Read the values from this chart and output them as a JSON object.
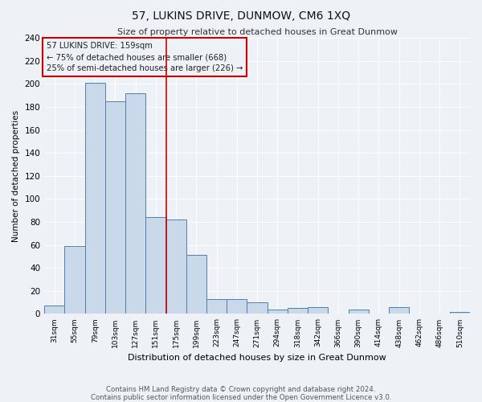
{
  "title": "57, LUKINS DRIVE, DUNMOW, CM6 1XQ",
  "subtitle": "Size of property relative to detached houses in Great Dunmow",
  "xlabel": "Distribution of detached houses by size in Great Dunmow",
  "ylabel": "Number of detached properties",
  "bar_labels": [
    "31sqm",
    "55sqm",
    "79sqm",
    "103sqm",
    "127sqm",
    "151sqm",
    "175sqm",
    "199sqm",
    "223sqm",
    "247sqm",
    "271sqm",
    "294sqm",
    "318sqm",
    "342sqm",
    "366sqm",
    "390sqm",
    "414sqm",
    "438sqm",
    "462sqm",
    "486sqm",
    "510sqm"
  ],
  "bar_values": [
    7,
    59,
    201,
    185,
    192,
    84,
    82,
    51,
    13,
    13,
    10,
    4,
    5,
    6,
    0,
    4,
    0,
    6,
    0,
    0,
    2
  ],
  "bar_color": "#c9d9ea",
  "bar_edge_color": "#4f7faa",
  "vline_x": 5.5,
  "vline_color": "#cc0000",
  "annotation_title": "57 LUKINS DRIVE: 159sqm",
  "annotation_line1": "← 75% of detached houses are smaller (668)",
  "annotation_line2": "25% of semi-detached houses are larger (226) →",
  "annotation_box_color": "#cc0000",
  "ylim": [
    0,
    240
  ],
  "yticks": [
    0,
    20,
    40,
    60,
    80,
    100,
    120,
    140,
    160,
    180,
    200,
    220,
    240
  ],
  "footnote1": "Contains HM Land Registry data © Crown copyright and database right 2024.",
  "footnote2": "Contains public sector information licensed under the Open Government Licence v3.0.",
  "background_color": "#eef2f7",
  "grid_color": "#ffffff"
}
